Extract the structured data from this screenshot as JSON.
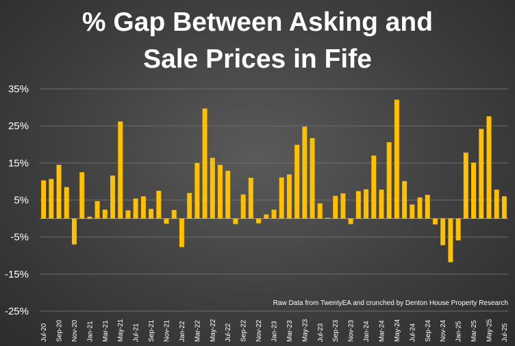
{
  "chart_data": {
    "type": "bar",
    "title_lines": [
      "% Gap Between Asking and",
      "Sale Prices in Fife"
    ],
    "source_note": "Raw Data from TwentyEA and crunched by Denton House Property Research",
    "ylim": [
      -25,
      35
    ],
    "y_ticks": [
      "35%",
      "25%",
      "15%",
      "5%",
      "-5%",
      "-15%",
      "-25%"
    ],
    "y_tick_values": [
      35,
      25,
      15,
      5,
      -5,
      -15,
      -25
    ],
    "grid": true,
    "bar_color": "#FFC000",
    "categories": [
      "Jul-20",
      "Aug-20",
      "Sep-20",
      "Oct-20",
      "Nov-20",
      "Dec-20",
      "Jan-21",
      "Feb-21",
      "Mar-21",
      "Apr-21",
      "May-21",
      "Jun-21",
      "Jul-21",
      "Aug-21",
      "Sep-21",
      "Oct-21",
      "Nov-21",
      "Dec-21",
      "Jan-22",
      "Feb-22",
      "Mar-22",
      "Apr-22",
      "May-22",
      "Jun-22",
      "Jul-22",
      "Aug-22",
      "Sep-22",
      "Oct-22",
      "Nov-22",
      "Dec-22",
      "Jan-23",
      "Feb-23",
      "Mar-23",
      "Apr-23",
      "May-23",
      "Jun-23",
      "Jul-23",
      "Aug-23",
      "Sep-23",
      "Oct-23",
      "Nov-23",
      "Dec-23",
      "Jan-24",
      "Feb-24",
      "Mar-24",
      "Apr-24",
      "May-24",
      "Jun-24",
      "Jul-24",
      "Aug-24",
      "Sep-24",
      "Oct-24",
      "Nov-24",
      "Dec-24",
      "Jan-25",
      "Feb-25",
      "Mar-25",
      "Apr-25",
      "May-25",
      "Jun-25",
      "Jul-25"
    ],
    "tick_labels": [
      "Jul-20",
      "Sep-20",
      "Nov-20",
      "Jan-21",
      "Mar-21",
      "May-21",
      "Jul-21",
      "Sep-21",
      "Nov-21",
      "Jan-22",
      "Mar-22",
      "May-22",
      "Jul-22",
      "Sep-22",
      "Nov-22",
      "Jan-23",
      "Mar-23",
      "May-23",
      "Jul-23",
      "Sep-23",
      "Nov-23",
      "Jan-24",
      "Mar-24",
      "May-24",
      "Jul-24",
      "Sep-24",
      "Nov-24",
      "Jan-25",
      "Mar-25",
      "May-25",
      "Jul-25"
    ],
    "values": [
      10.3,
      10.7,
      14.5,
      8.5,
      -7.0,
      12.5,
      0.5,
      4.7,
      2.4,
      11.6,
      26.2,
      2.2,
      5.4,
      6.0,
      2.6,
      7.5,
      -1.4,
      2.3,
      -7.7,
      6.9,
      15.0,
      29.7,
      16.4,
      14.5,
      12.9,
      -1.5,
      6.5,
      11.0,
      -1.3,
      1.1,
      2.4,
      11.1,
      11.9,
      19.9,
      24.8,
      21.7,
      4.1,
      0.2,
      6.1,
      6.8,
      -1.5,
      7.4,
      7.9,
      17.0,
      7.8,
      20.6,
      32.1,
      10.1,
      3.8,
      5.7,
      6.4,
      -1.6,
      -7.2,
      -11.8,
      -5.9,
      17.8,
      15.1,
      24.2,
      27.6,
      7.8,
      6.0
    ]
  }
}
